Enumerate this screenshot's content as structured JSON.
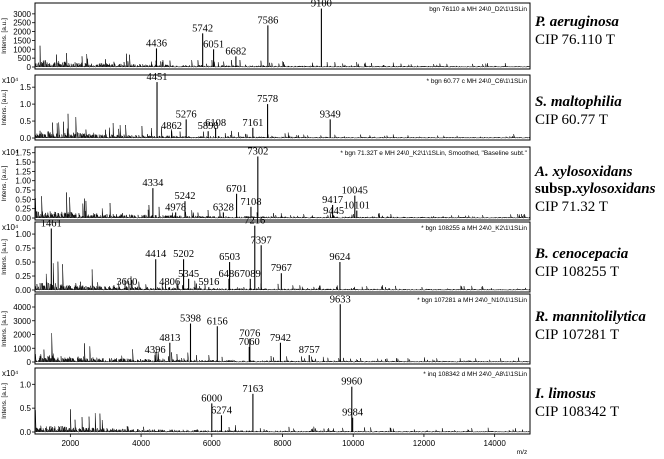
{
  "axis": {
    "x_unit": "m/z",
    "x_ticks": [
      "2000",
      "4000",
      "6000",
      "8000",
      "10000",
      "12000",
      "14000"
    ],
    "x_range": [
      1000,
      15000
    ],
    "ylabel": "Intens. [a.u.]"
  },
  "chart_data": [
    {
      "type": "line",
      "species_italic": "P. aeruginosa",
      "cip": "CIP 76.110 T",
      "file_label": "bgn 76110 a MH 24\\0_D2\\1\\1SLin",
      "y_exp": "",
      "y_ticks": [
        "0",
        "500",
        "1000",
        "1500",
        "2000",
        "2500",
        "3000"
      ],
      "ylim": [
        0,
        3500
      ],
      "peaks": [
        {
          "mz": 4436,
          "y": 1050,
          "label": "4436"
        },
        {
          "mz": 5742,
          "y": 1900,
          "label": "5742"
        },
        {
          "mz": 6051,
          "y": 1000,
          "label": "6051"
        },
        {
          "mz": 6682,
          "y": 600,
          "label": "6682"
        },
        {
          "mz": 7586,
          "y": 2350,
          "label": "7586"
        },
        {
          "mz": 9100,
          "y": 3300,
          "label": "9100"
        }
      ]
    },
    {
      "type": "line",
      "species_italic": "S. maltophilia",
      "cip": "CIP 60.77 T",
      "file_label": "* bgn 60.77 c MH 24\\0_C6\\1\\1SLin",
      "y_exp": "x10⁴",
      "y_ticks": [
        "0.0",
        "0.5",
        "1.0",
        "1.5"
      ],
      "ylim": [
        0,
        1.8
      ],
      "peaks": [
        {
          "mz": 4451,
          "y": 1.65,
          "label": "4451"
        },
        {
          "mz": 4862,
          "y": 0.2,
          "label": "4862"
        },
        {
          "mz": 5276,
          "y": 0.55,
          "label": "5276"
        },
        {
          "mz": 5898,
          "y": 0.2,
          "label": "5898"
        },
        {
          "mz": 6108,
          "y": 0.3,
          "label": "6108"
        },
        {
          "mz": 7161,
          "y": 0.3,
          "label": "7161"
        },
        {
          "mz": 7578,
          "y": 1.0,
          "label": "7578"
        },
        {
          "mz": 9349,
          "y": 0.55,
          "label": "9349"
        }
      ]
    },
    {
      "type": "line",
      "species_italic": "A. xylosoxidans",
      "species_sub_prefix": "subsp.",
      "species_sub_italic": "xylosoxidans",
      "cip": "CIP 71.32 T",
      "file_label": "* bgn 71.32T e MH 24\\0_K2\\1\\1SLin, Smoothed, \"Baseline subt.\"",
      "y_exp": "x10⁴",
      "y_ticks": [
        "0.00",
        "0.25",
        "0.50",
        "0.75",
        "1.00",
        "1.25",
        "1.50",
        "1.75"
      ],
      "ylim": [
        0,
        1.85
      ],
      "peaks": [
        {
          "mz": 4334,
          "y": 0.8,
          "label": "4334"
        },
        {
          "mz": 4978,
          "y": 0.15,
          "label": "4978"
        },
        {
          "mz": 5242,
          "y": 0.45,
          "label": "5242"
        },
        {
          "mz": 6328,
          "y": 0.15,
          "label": "6328"
        },
        {
          "mz": 6701,
          "y": 0.65,
          "label": "6701"
        },
        {
          "mz": 7108,
          "y": 0.3,
          "label": "7108"
        },
        {
          "mz": 7302,
          "y": 1.65,
          "label": "7302"
        },
        {
          "mz": 9417,
          "y": 0.35,
          "label": "9417"
        },
        {
          "mz": 9445,
          "y": 0.05,
          "label": "9445"
        },
        {
          "mz": 10045,
          "y": 0.6,
          "label": "10045"
        },
        {
          "mz": 10101,
          "y": 0.2,
          "label": "10101"
        }
      ]
    },
    {
      "type": "line",
      "species_italic": "B. cenocepacia",
      "cip": "CIP 108255 T",
      "file_label": "* bgn 108255 a MH 24\\0_K2\\1\\1SLin",
      "y_exp": "x10⁴",
      "y_ticks": [
        "0.00",
        "0.25",
        "0.50",
        "0.75",
        "1.00"
      ],
      "ylim": [
        0,
        1.18
      ],
      "peaks": [
        {
          "mz": 1461,
          "y": 1.1,
          "label": "1461"
        },
        {
          "mz": 3600,
          "y": 0.05,
          "label": "3600"
        },
        {
          "mz": 4414,
          "y": 0.55,
          "label": "4414"
        },
        {
          "mz": 4806,
          "y": 0.05,
          "label": "4806"
        },
        {
          "mz": 5202,
          "y": 0.55,
          "label": "5202"
        },
        {
          "mz": 5345,
          "y": 0.2,
          "label": "5345"
        },
        {
          "mz": 5916,
          "y": 0.05,
          "label": "5916"
        },
        {
          "mz": 6486,
          "y": 0.2,
          "label": "6486"
        },
        {
          "mz": 6503,
          "y": 0.5,
          "label": "6503"
        },
        {
          "mz": 7089,
          "y": 0.2,
          "label": "7089"
        },
        {
          "mz": 7216,
          "y": 1.15,
          "label": "7216"
        },
        {
          "mz": 7397,
          "y": 0.8,
          "label": "7397"
        },
        {
          "mz": 7967,
          "y": 0.3,
          "label": "7967"
        },
        {
          "mz": 9624,
          "y": 0.5,
          "label": "9624"
        }
      ]
    },
    {
      "type": "line",
      "species_italic": "R. mannitolilytica",
      "cip": "CIP 107281 T",
      "file_label": "* bgn 107281 a MH 24\\0_N10\\1\\1SLin",
      "y_exp": "",
      "y_ticks": [
        "0",
        "1000",
        "2000",
        "3000",
        "4000"
      ],
      "ylim": [
        0,
        4800
      ],
      "peaks": [
        {
          "mz": 4396,
          "y": 500,
          "label": "4396"
        },
        {
          "mz": 4813,
          "y": 1400,
          "label": "4813"
        },
        {
          "mz": 5398,
          "y": 2800,
          "label": "5398"
        },
        {
          "mz": 6156,
          "y": 2600,
          "label": "6156"
        },
        {
          "mz": 7060,
          "y": 1100,
          "label": "7060"
        },
        {
          "mz": 7076,
          "y": 1700,
          "label": "7076"
        },
        {
          "mz": 7942,
          "y": 1400,
          "label": "7942"
        },
        {
          "mz": 8757,
          "y": 500,
          "label": "8757"
        },
        {
          "mz": 9633,
          "y": 4200,
          "label": "9633"
        }
      ]
    },
    {
      "type": "line",
      "species_italic": "I. limosus",
      "cip": "CIP 108342 T",
      "file_label": "* inq 108342 d MH 24\\0_A8\\1\\1SLin",
      "y_exp": "x10⁴",
      "y_ticks": [
        "0.0",
        "0.5",
        "1.0"
      ],
      "ylim": [
        0,
        1.3
      ],
      "peaks": [
        {
          "mz": 6000,
          "y": 0.6,
          "label": "6000"
        },
        {
          "mz": 6274,
          "y": 0.35,
          "label": "6274"
        },
        {
          "mz": 7163,
          "y": 0.8,
          "label": "7163"
        },
        {
          "mz": 9960,
          "y": 0.95,
          "label": "9960"
        },
        {
          "mz": 9984,
          "y": 0.3,
          "label": "9984"
        }
      ]
    }
  ]
}
